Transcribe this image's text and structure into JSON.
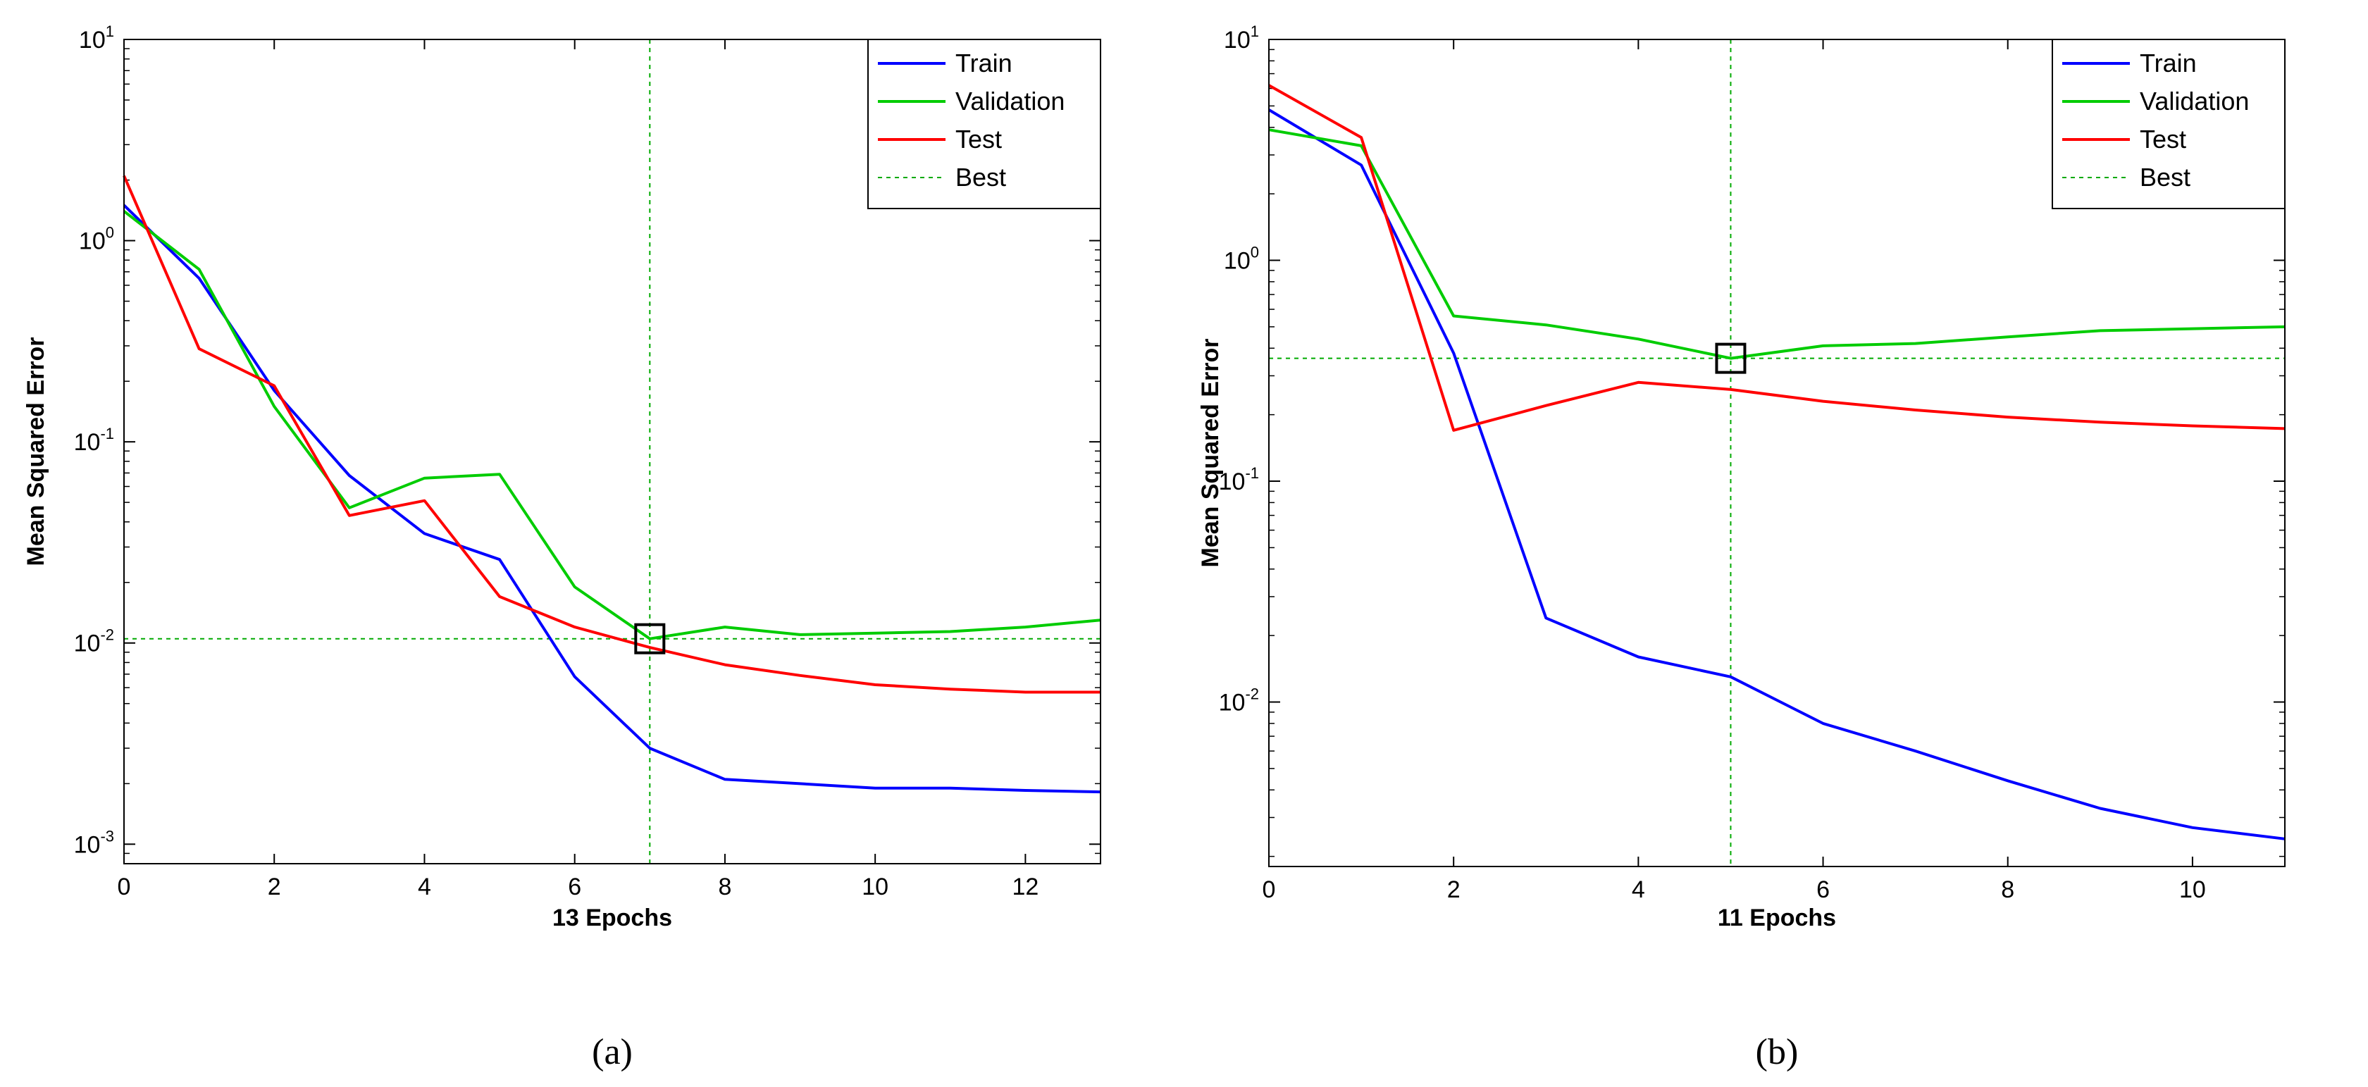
{
  "chart_data": [
    {
      "type": "line",
      "yscale": "log",
      "xlim": [
        0,
        13
      ],
      "ylim": [
        0.0008,
        10
      ],
      "xticks": [
        0,
        2,
        4,
        6,
        8,
        10,
        12
      ],
      "xtick_labels": [
        "0",
        "2",
        "4",
        "6",
        "8",
        "10",
        "12"
      ],
      "yticks": [
        0.001,
        0.01,
        0.1,
        1,
        10
      ],
      "ytick_labels": [
        {
          "base": "10",
          "exp": "-3"
        },
        {
          "base": "10",
          "exp": "-2"
        },
        {
          "base": "10",
          "exp": "-1"
        },
        {
          "base": "10",
          "exp": "0"
        },
        {
          "base": "10",
          "exp": "1"
        }
      ],
      "xlabel": "13 Epochs",
      "ylabel": "Mean Squared Error",
      "caption": "(a)",
      "legend_position": "top-right",
      "series": [
        {
          "name": "Train",
          "color": "#0000ff",
          "x": [
            0,
            1,
            2,
            3,
            4,
            5,
            6,
            7,
            8,
            9,
            10,
            11,
            12,
            13
          ],
          "values": [
            1.5,
            0.65,
            0.18,
            0.068,
            0.035,
            0.026,
            0.0068,
            0.003,
            0.0021,
            0.002,
            0.0019,
            0.0019,
            0.00185,
            0.00182
          ]
        },
        {
          "name": "Validation",
          "color": "#00cc00",
          "x": [
            0,
            1,
            2,
            3,
            4,
            5,
            6,
            7,
            8,
            9,
            10,
            11,
            12,
            13
          ],
          "values": [
            1.4,
            0.72,
            0.15,
            0.047,
            0.066,
            0.069,
            0.019,
            0.0105,
            0.012,
            0.011,
            0.0112,
            0.0114,
            0.012,
            0.013
          ]
        },
        {
          "name": "Test",
          "color": "#ff0000",
          "x": [
            0,
            1,
            2,
            3,
            4,
            5,
            6,
            7,
            8,
            9,
            10,
            11,
            12,
            13
          ],
          "values": [
            2.1,
            0.29,
            0.19,
            0.043,
            0.051,
            0.017,
            0.012,
            0.0095,
            0.0078,
            0.0069,
            0.0062,
            0.0059,
            0.0057,
            0.0057
          ]
        }
      ],
      "best": {
        "label": "Best",
        "color": "#00aa00",
        "epoch": 7,
        "value": 0.0105
      }
    },
    {
      "type": "line",
      "yscale": "log",
      "xlim": [
        0,
        11
      ],
      "ylim": [
        0.0018,
        10
      ],
      "xticks": [
        0,
        2,
        4,
        6,
        8,
        10
      ],
      "xtick_labels": [
        "0",
        "2",
        "4",
        "6",
        "8",
        "10"
      ],
      "yticks": [
        0.01,
        0.1,
        1,
        10
      ],
      "ytick_labels": [
        {
          "base": "10",
          "exp": "-2"
        },
        {
          "base": "10",
          "exp": "-1"
        },
        {
          "base": "10",
          "exp": "0"
        },
        {
          "base": "10",
          "exp": "1"
        }
      ],
      "xlabel": "11 Epochs",
      "ylabel": "Mean Squared Error",
      "caption": "(b)",
      "legend_position": "top-right",
      "series": [
        {
          "name": "Train",
          "color": "#0000ff",
          "x": [
            0,
            1,
            2,
            3,
            4,
            5,
            6,
            7,
            8,
            9,
            10,
            11
          ],
          "values": [
            4.8,
            2.7,
            0.38,
            0.024,
            0.016,
            0.013,
            0.008,
            0.006,
            0.0044,
            0.0033,
            0.0027,
            0.0024
          ]
        },
        {
          "name": "Validation",
          "color": "#00cc00",
          "x": [
            0,
            1,
            2,
            3,
            4,
            5,
            6,
            7,
            8,
            9,
            10,
            11
          ],
          "values": [
            3.9,
            3.3,
            0.56,
            0.51,
            0.44,
            0.36,
            0.41,
            0.42,
            0.45,
            0.48,
            0.49,
            0.5
          ]
        },
        {
          "name": "Test",
          "color": "#ff0000",
          "x": [
            0,
            1,
            2,
            3,
            4,
            5,
            6,
            7,
            8,
            9,
            10,
            11
          ],
          "values": [
            6.2,
            3.6,
            0.17,
            0.22,
            0.28,
            0.26,
            0.23,
            0.21,
            0.195,
            0.185,
            0.178,
            0.173
          ]
        }
      ],
      "best": {
        "label": "Best",
        "color": "#00aa00",
        "epoch": 5,
        "value": 0.36
      }
    }
  ]
}
